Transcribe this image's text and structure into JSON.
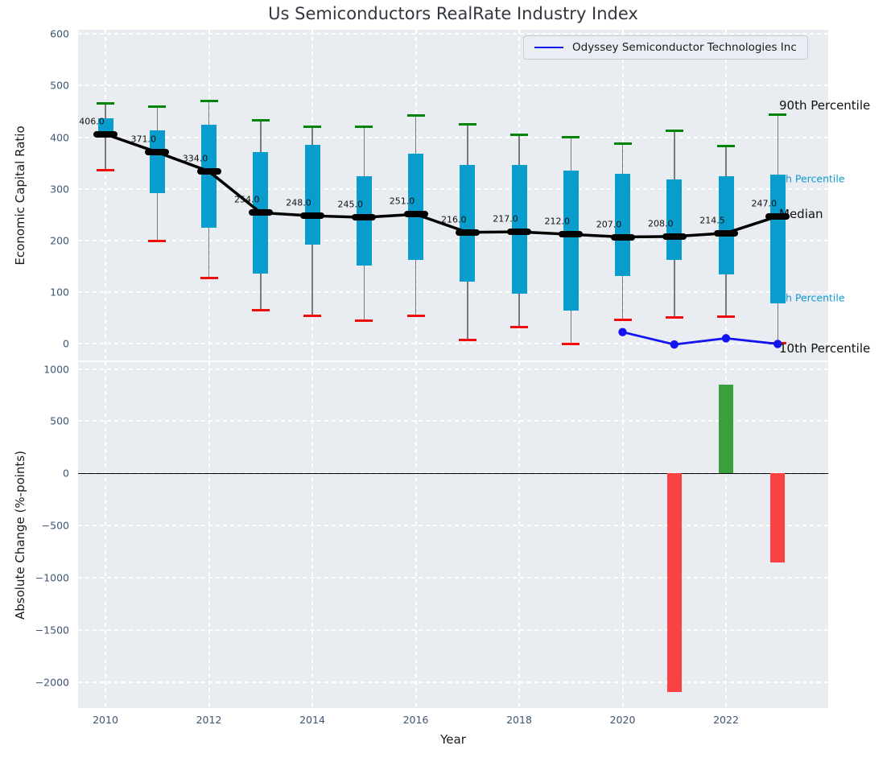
{
  "title": "Us Semiconductors RealRate Industry Index",
  "legend": {
    "label": "Odyssey Semiconductor Technologies Inc"
  },
  "xaxis": {
    "label": "Year",
    "ticks": [
      2010,
      2012,
      2014,
      2016,
      2018,
      2020,
      2022
    ],
    "ticklabels": [
      "2010",
      "2012",
      "2014",
      "2016",
      "2018",
      "2020",
      "2022"
    ]
  },
  "colors": {
    "plot_bg": "#e9edf1",
    "grid": "#ffffff",
    "tick_label": "#3e5473",
    "box_fill": "#089dcc",
    "whisker": "#7a7a7a",
    "cap_high_green": "#008508",
    "cap_low_red": "#f20d0d",
    "median_black": "#000000",
    "odyssey_blue": "#1414f0",
    "bar_positive_green": "#3aa03e",
    "bar_negative_red": "#fa4242",
    "annotation_teal": "#0f9ad2",
    "annotation_black": "#111111"
  },
  "chart_data": [
    {
      "type": "boxplot",
      "title": "Us Semiconductors RealRate Industry Index",
      "ylabel": "Economic Capital Ratio",
      "grid": true,
      "axis_draw_range": [
        -32,
        608
      ],
      "yticks": [
        0,
        100,
        200,
        300,
        400,
        500,
        600
      ],
      "yticklabels": [
        "0",
        "100",
        "200",
        "300",
        "400",
        "500",
        "600"
      ],
      "years": [
        2010,
        2011,
        2012,
        2013,
        2014,
        2015,
        2016,
        2017,
        2018,
        2019,
        2020,
        2021,
        2022,
        2023
      ],
      "p90": [
        466,
        460,
        470,
        433,
        420,
        420,
        442,
        425,
        405,
        400,
        388,
        413,
        383,
        443
      ],
      "q3": [
        436,
        413,
        425,
        372,
        385,
        325,
        368,
        347,
        347,
        335,
        329,
        318,
        324,
        327
      ],
      "median": [
        406,
        371,
        334,
        254,
        248,
        245,
        251,
        216,
        217,
        212,
        207,
        208,
        214.5,
        247
      ],
      "q1": [
        399,
        292,
        225,
        136,
        193,
        152,
        163,
        120,
        97,
        64,
        131,
        162,
        135,
        78
      ],
      "p10": [
        336,
        200,
        128,
        65,
        55,
        45,
        54,
        8,
        32,
        0,
        46,
        52,
        53,
        2
      ],
      "median_labels": [
        "406.0",
        "371.0",
        "334.0",
        "254.0",
        "248.0",
        "245.0",
        "251.0",
        "216.0",
        "217.0",
        "212.0",
        "207.0",
        "208.0",
        "214.5",
        "247.0"
      ],
      "series": [
        {
          "name": "Odyssey Semiconductor Technologies Inc",
          "x": [
            2020,
            2021,
            2022,
            2023
          ],
          "y": [
            23,
            -1,
            11,
            0
          ]
        }
      ],
      "annotations": [
        {
          "text": "90th Percentile",
          "v": 462,
          "style": "black"
        },
        {
          "text": "h Percentile",
          "v": 320,
          "style": "teal"
        },
        {
          "text": "Median",
          "v": 252,
          "style": "black"
        },
        {
          "text": "h Percentile",
          "v": 90,
          "style": "teal"
        },
        {
          "text": "10th Percentile",
          "v": -8,
          "style": "black"
        }
      ]
    },
    {
      "type": "bar",
      "ylabel": "Absolute Change (%-points)",
      "grid": true,
      "axis_draw_range": [
        -2247,
        1066
      ],
      "yticks": [
        1000,
        500,
        0,
        -500,
        -1000,
        -1500,
        -2000
      ],
      "yticklabels": [
        "1000",
        "500",
        "0",
        "−500",
        "−1000",
        "−1500",
        "−2000"
      ],
      "bars": [
        {
          "year": 2021,
          "value": -2090
        },
        {
          "year": 2022,
          "value": 850
        },
        {
          "year": 2023,
          "value": -850
        }
      ]
    }
  ]
}
